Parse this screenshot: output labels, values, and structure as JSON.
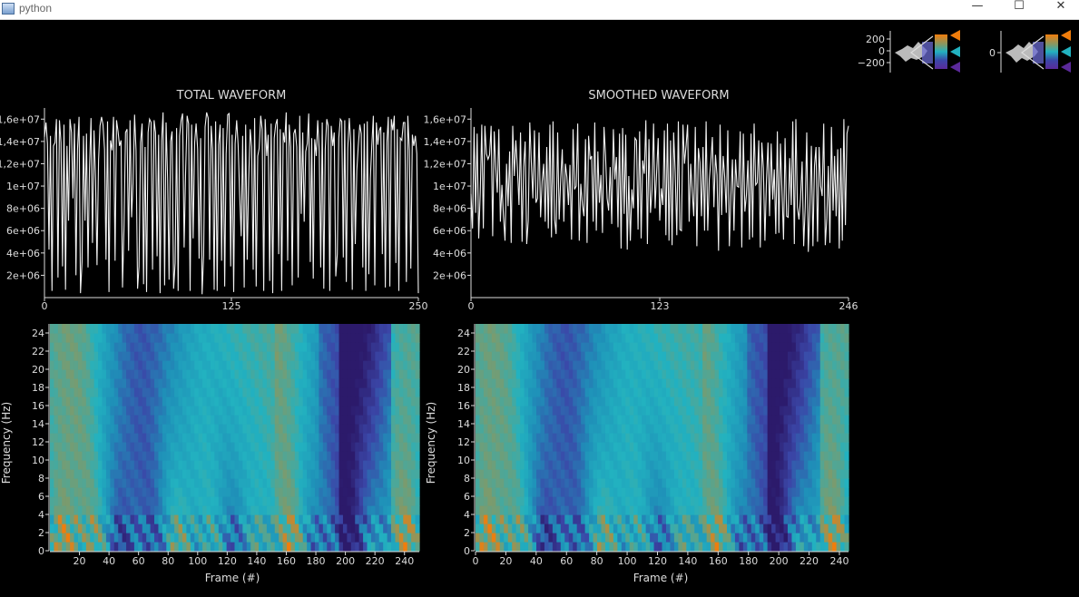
{
  "window": {
    "title": "python",
    "minimize_glyph": "—",
    "maximize_glyph": "☐",
    "close_glyph": "✕"
  },
  "colors": {
    "background": "#000000",
    "foreground": "#dddddd",
    "colormap": [
      "#2c1a6b",
      "#3b47a8",
      "#1f8fb8",
      "#22b2c0",
      "#7f9a6a",
      "#f07d0c"
    ]
  },
  "histogram_widgets": [
    {
      "ticks": [
        "200",
        "0",
        "−200"
      ]
    },
    {
      "ticks": [
        "0"
      ]
    }
  ],
  "chart_data": [
    {
      "type": "line",
      "title": "TOTAL WAVEFORM",
      "xlim": [
        0,
        250
      ],
      "ylim": [
        0,
        17000000
      ],
      "x_ticks": [
        "0",
        "125",
        "250"
      ],
      "y_ticks": [
        "2e+06",
        "4e+06",
        "6e+06",
        "8e+06",
        "1e+07",
        "1,2e+07",
        "1,4e+07",
        "1,6e+07"
      ],
      "y": [
        14400000,
        15700000,
        13800000,
        4300000,
        14500000,
        600000,
        13600000,
        13900000,
        16000000,
        1800000,
        15900000,
        13900000,
        2800000,
        15500000,
        700000,
        13600000,
        6900000,
        16000000,
        14800000,
        8900000,
        15600000,
        2000000,
        13300000,
        16200000,
        400000,
        3200000,
        14500000,
        6900000,
        14700000,
        2700000,
        11600000,
        16100000,
        4900000,
        15000000,
        10500000,
        2900000,
        12300000,
        15400000,
        16200000,
        15500000,
        13300000,
        3400000,
        15800000,
        500000,
        14100000,
        13200000,
        16200000,
        3300000,
        15900000,
        14900000,
        13600000,
        14100000,
        900000,
        6500000,
        14800000,
        15100000,
        4200000,
        15900000,
        7200000,
        10300000,
        16400000,
        13200000,
        800000,
        2800000,
        13900000,
        15600000,
        1200000,
        13500000,
        500000,
        14800000,
        16000000,
        15700000,
        2500000,
        15900000,
        14800000,
        3700000,
        14600000,
        400000,
        14100000,
        16600000,
        1100000,
        15700000,
        10700000,
        1600000,
        14000000,
        14900000,
        800000,
        3100000,
        15200000,
        600000,
        14500000,
        15900000,
        16500000,
        4500000,
        11100000,
        16300000,
        15600000,
        600000,
        15500000,
        5300000,
        13900000,
        15600000,
        13300000,
        3500000,
        14300000,
        300000,
        3800000,
        15300000,
        16600000,
        16100000,
        3400000,
        15400000,
        13300000,
        700000,
        15800000,
        600000,
        13700000,
        15500000,
        3300000,
        15200000,
        1000000,
        12900000,
        16400000,
        16500000,
        2800000,
        14600000,
        500000,
        13800000,
        15900000,
        13700000,
        9200000,
        5500000,
        14500000,
        900000,
        15500000,
        3400000,
        10500000,
        15100000,
        13500000,
        2500000,
        16100000,
        1000000,
        12700000,
        13400000,
        16300000,
        15100000,
        600000,
        16000000,
        12700000,
        14600000,
        1500000,
        15600000,
        400000,
        14300000,
        15500000,
        16000000,
        3900000,
        15100000,
        600000,
        14800000,
        13900000,
        16600000,
        3300000,
        15500000,
        13500000,
        1100000,
        14700000,
        15100000,
        13500000,
        1800000,
        16300000,
        7500000,
        14800000,
        6800000,
        13100000,
        13800000,
        16500000,
        3200000,
        14300000,
        1700000,
        14200000,
        12700000,
        15900000,
        13100000,
        2700000,
        15700000,
        800000,
        13300000,
        16000000,
        15400000,
        600000,
        15400000,
        13600000,
        14800000,
        1900000,
        3900000,
        14300000,
        16000000,
        15800000,
        3600000,
        15900000,
        1400000,
        13400000,
        16100000,
        13800000,
        700000,
        15100000,
        4800000,
        11400000,
        13600000,
        15500000,
        14700000,
        2700000,
        15600000,
        600000,
        15800000,
        2100000,
        10700000,
        13600000,
        16300000,
        1100000,
        15700000,
        13700000,
        15000000,
        15300000,
        3900000,
        14800000,
        900000,
        13900000,
        16200000,
        1000000,
        16000000,
        15000000,
        16300000,
        3100000,
        15100000,
        600000,
        14300000,
        14100000,
        15700000,
        15700000,
        1400000,
        16300000,
        13200000,
        2600000,
        14600000,
        13600000,
        14500000,
        12900000,
        400000
      ]
    },
    {
      "type": "line",
      "title": "SMOOTHED WAVEFORM",
      "xlim": [
        0,
        246
      ],
      "ylim": [
        0,
        17000000
      ],
      "x_ticks": [
        "0",
        "123",
        "246"
      ],
      "y_ticks": [
        "2e+06",
        "4e+06",
        "6e+06",
        "8e+06",
        "1e+07",
        "1,2e+07",
        "1,4e+07",
        "1,6e+07"
      ],
      "y": [
        9300000,
        6200000,
        15300000,
        7600000,
        14700000,
        5300000,
        9400000,
        15500000,
        6200000,
        15400000,
        12900000,
        12400000,
        12800000,
        15400000,
        5500000,
        14900000,
        11700000,
        9400000,
        15100000,
        6800000,
        10100000,
        7300000,
        5100000,
        12000000,
        8200000,
        13100000,
        4900000,
        15400000,
        10900000,
        14100000,
        11700000,
        8300000,
        14800000,
        5000000,
        11700000,
        14000000,
        4800000,
        6900000,
        15700000,
        12100000,
        8900000,
        15000000,
        8500000,
        8900000,
        14800000,
        7200000,
        10400000,
        12000000,
        6800000,
        13500000,
        6200000,
        15500000,
        5400000,
        15800000,
        7000000,
        5700000,
        14800000,
        7000000,
        10700000,
        13300000,
        6800000,
        12000000,
        10800000,
        8300000,
        11900000,
        5200000,
        15100000,
        9700000,
        10000000,
        15600000,
        5100000,
        10200000,
        8300000,
        7300000,
        14200000,
        4900000,
        14500000,
        12400000,
        12700000,
        6800000,
        15700000,
        6000000,
        13100000,
        8500000,
        11000000,
        5800000,
        15300000,
        12700000,
        8900000,
        7800000,
        11700000,
        6600000,
        15100000,
        10600000,
        12600000,
        6300000,
        14700000,
        4400000,
        15200000,
        7500000,
        14600000,
        4300000,
        10900000,
        5100000,
        9700000,
        8000000,
        14300000,
        14100000,
        6100000,
        14900000,
        5300000,
        12300000,
        11100000,
        15900000,
        4800000,
        14200000,
        7600000,
        9700000,
        15600000,
        8000000,
        11300000,
        14300000,
        6900000,
        9800000,
        8300000,
        15000000,
        5600000,
        15600000,
        5100000,
        14100000,
        4700000,
        14800000,
        11300000,
        5600000,
        15800000,
        6100000,
        6000000,
        15500000,
        12000000,
        13600000,
        15500000,
        6800000,
        12000000,
        9500000,
        7300000,
        15300000,
        4600000,
        13400000,
        12100000,
        7300000,
        13500000,
        6000000,
        15800000,
        6000000,
        10600000,
        12200000,
        14400000,
        8100000,
        12800000,
        11000000,
        4200000,
        15500000,
        7400000,
        12700000,
        10800000,
        7600000,
        15000000,
        4600000,
        9100000,
        12400000,
        6000000,
        12400000,
        10000000,
        9900000,
        14900000,
        4500000,
        14700000,
        7700000,
        9200000,
        12300000,
        5200000,
        14700000,
        5400000,
        15600000,
        10100000,
        10300000,
        14100000,
        4500000,
        13900000,
        11600000,
        5100000,
        10500000,
        13900000,
        7300000,
        13800000,
        8800000,
        11500000,
        5700000,
        14900000,
        5800000,
        13800000,
        9600000,
        5200000,
        14300000,
        7300000,
        7200000,
        12500000,
        8300000,
        15800000,
        4800000,
        16000000,
        8100000,
        7000000,
        8800000,
        12200000,
        4600000,
        8100000,
        14800000,
        4100000,
        8000000,
        13600000,
        4600000,
        11800000,
        13500000,
        5000000,
        13500000,
        10000000,
        9100000,
        15600000,
        4700000,
        7100000,
        11800000,
        4900000,
        15300000,
        7800000,
        12700000,
        7300000,
        13300000,
        4400000,
        13400000,
        5100000,
        16000000,
        6500000,
        14700000,
        15400000
      ]
    },
    {
      "type": "heatmap",
      "title": "",
      "xlabel": "Frame (#)",
      "ylabel": "Frequency (Hz)",
      "xlim": [
        0,
        250
      ],
      "ylim": [
        0,
        25
      ],
      "x_ticks": [
        "20",
        "40",
        "60",
        "80",
        "100",
        "120",
        "140",
        "160",
        "180",
        "200",
        "220",
        "240"
      ],
      "y_ticks": [
        "0",
        "2",
        "4",
        "6",
        "8",
        "10",
        "12",
        "14",
        "16",
        "18",
        "20",
        "22",
        "24"
      ],
      "description_source": "total"
    },
    {
      "type": "heatmap",
      "title": "",
      "xlabel": "Frame (#)",
      "ylabel": "Frequency (Hz)",
      "xlim": [
        0,
        246
      ],
      "ylim": [
        0,
        25
      ],
      "x_ticks": [
        "0",
        "20",
        "40",
        "60",
        "80",
        "100",
        "120",
        "140",
        "160",
        "180",
        "200",
        "220",
        "240"
      ],
      "y_ticks": [
        "0",
        "2",
        "4",
        "6",
        "8",
        "10",
        "12",
        "14",
        "16",
        "18",
        "20",
        "22",
        "24"
      ],
      "description_source": "smoothed"
    }
  ]
}
